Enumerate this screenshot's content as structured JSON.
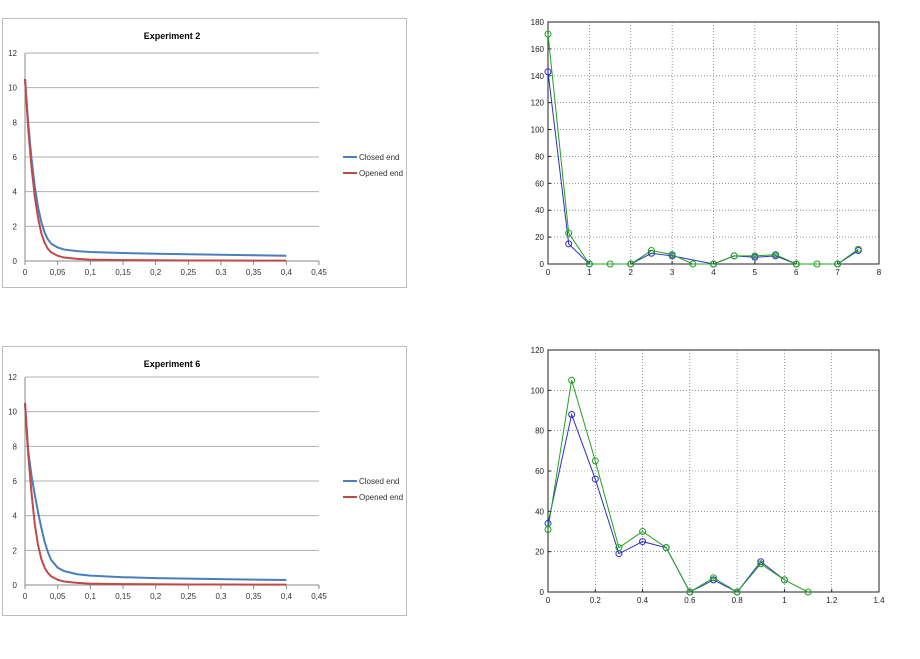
{
  "chart_data": [
    {
      "id": "exp2",
      "type": "line",
      "title": "Experiment 2",
      "xlim": [
        0,
        0.45
      ],
      "ylim": [
        0,
        12
      ],
      "x_ticks": [
        0,
        0.05,
        0.1,
        0.15,
        0.2,
        0.25,
        0.3,
        0.35,
        0.4,
        0.45
      ],
      "x_tick_labels": [
        "0",
        "0,05",
        "0,1",
        "0,15",
        "0,2",
        "0,25",
        "0,3",
        "0,35",
        "0,4",
        "0,45"
      ],
      "y_ticks": [
        0,
        2,
        4,
        6,
        8,
        10,
        12
      ],
      "y_tick_labels": [
        "0",
        "2",
        "4",
        "6",
        "8",
        "10",
        "12"
      ],
      "grid": "horizontal",
      "legend_position": "right",
      "series": [
        {
          "name": "Closed end",
          "color": "#4a7ebb",
          "x": [
            0,
            0.005,
            0.01,
            0.015,
            0.02,
            0.025,
            0.03,
            0.035,
            0.04,
            0.05,
            0.06,
            0.08,
            0.1,
            0.15,
            0.2,
            0.25,
            0.3,
            0.35,
            0.4
          ],
          "y": [
            10.5,
            7.9,
            5.9,
            4.3,
            3.1,
            2.25,
            1.65,
            1.25,
            1.0,
            0.78,
            0.66,
            0.57,
            0.52,
            0.46,
            0.42,
            0.39,
            0.36,
            0.33,
            0.3
          ]
        },
        {
          "name": "Opened end",
          "color": "#be4b48",
          "x": [
            0,
            0.005,
            0.01,
            0.015,
            0.02,
            0.025,
            0.03,
            0.035,
            0.04,
            0.05,
            0.06,
            0.08,
            0.1,
            0.15,
            0.2,
            0.25,
            0.3,
            0.35,
            0.4
          ],
          "y": [
            10.5,
            7.6,
            5.4,
            3.7,
            2.5,
            1.6,
            1.05,
            0.7,
            0.5,
            0.3,
            0.2,
            0.12,
            0.08,
            0.05,
            0.04,
            0.03,
            0.03,
            0.02,
            0.02
          ]
        }
      ]
    },
    {
      "id": "plot1",
      "type": "line",
      "title": "",
      "xlim": [
        0,
        8
      ],
      "ylim": [
        0,
        180
      ],
      "x_ticks": [
        0,
        1,
        2,
        3,
        4,
        5,
        6,
        7,
        8
      ],
      "x_tick_labels": [
        "0",
        "1",
        "2",
        "3",
        "4",
        "5",
        "6",
        "7",
        "8"
      ],
      "y_ticks": [
        0,
        20,
        40,
        60,
        80,
        100,
        120,
        140,
        160,
        180
      ],
      "y_tick_labels": [
        "0",
        "20",
        "40",
        "60",
        "80",
        "100",
        "120",
        "140",
        "160",
        "180"
      ],
      "grid": "dotted",
      "markers": "circle",
      "series": [
        {
          "color": "#2e2ec8",
          "x": [
            0,
            0.5,
            1,
            2,
            2.5,
            3,
            4,
            4.5,
            5,
            5.5,
            6,
            7,
            7.5
          ],
          "y": [
            143,
            15,
            0,
            0,
            8,
            6,
            0,
            6,
            5,
            6,
            0,
            0,
            10
          ]
        },
        {
          "color": "#22a022",
          "x": [
            0,
            0.5,
            1,
            1.5,
            2,
            2.5,
            3,
            3.5,
            4,
            4.5,
            5,
            5.5,
            6,
            6.5,
            7,
            7.5
          ],
          "y": [
            171,
            23,
            0,
            0,
            0,
            10,
            7,
            0,
            0,
            6,
            6,
            7,
            0,
            0,
            0,
            11
          ]
        }
      ]
    },
    {
      "id": "exp6",
      "type": "line",
      "title": "Experiment 6",
      "xlim": [
        0,
        0.45
      ],
      "ylim": [
        0,
        12
      ],
      "x_ticks": [
        0,
        0.05,
        0.1,
        0.15,
        0.2,
        0.25,
        0.3,
        0.35,
        0.4,
        0.45
      ],
      "x_tick_labels": [
        "0",
        "0,05",
        "0,1",
        "0,15",
        "0,2",
        "0,25",
        "0,3",
        "0,35",
        "0,4",
        "0,45"
      ],
      "y_ticks": [
        0,
        2,
        4,
        6,
        8,
        10,
        12
      ],
      "y_tick_labels": [
        "0",
        "2",
        "4",
        "6",
        "8",
        "10",
        "12"
      ],
      "grid": "horizontal",
      "legend_position": "right",
      "series": [
        {
          "name": "Closed end",
          "color": "#4a7ebb",
          "x": [
            0,
            0.005,
            0.01,
            0.015,
            0.02,
            0.025,
            0.03,
            0.035,
            0.04,
            0.05,
            0.06,
            0.08,
            0.1,
            0.15,
            0.2,
            0.25,
            0.3,
            0.35,
            0.4
          ],
          "y": [
            10.5,
            7.7,
            6.3,
            5.2,
            4.2,
            3.3,
            2.5,
            1.9,
            1.45,
            1.0,
            0.8,
            0.62,
            0.54,
            0.45,
            0.4,
            0.37,
            0.34,
            0.31,
            0.29
          ]
        },
        {
          "name": "Opened end",
          "color": "#be4b48",
          "x": [
            0,
            0.005,
            0.01,
            0.015,
            0.02,
            0.025,
            0.03,
            0.035,
            0.04,
            0.05,
            0.06,
            0.08,
            0.1,
            0.15,
            0.2,
            0.25,
            0.3,
            0.35,
            0.4
          ],
          "y": [
            10.5,
            7.5,
            5.3,
            3.5,
            2.3,
            1.5,
            1.0,
            0.7,
            0.5,
            0.3,
            0.2,
            0.12,
            0.08,
            0.05,
            0.04,
            0.03,
            0.03,
            0.02,
            0.02
          ]
        }
      ]
    },
    {
      "id": "plot2",
      "type": "line",
      "title": "",
      "xlim": [
        0,
        1.4
      ],
      "ylim": [
        0,
        120
      ],
      "x_ticks": [
        0,
        0.2,
        0.4,
        0.6,
        0.8,
        1,
        1.2,
        1.4
      ],
      "x_tick_labels": [
        "0",
        "0.2",
        "0.4",
        "0.6",
        "0.8",
        "1",
        "1.2",
        "1.4"
      ],
      "y_ticks": [
        0,
        20,
        40,
        60,
        80,
        100,
        120
      ],
      "y_tick_labels": [
        "0",
        "20",
        "40",
        "60",
        "80",
        "100",
        "120"
      ],
      "grid": "dotted",
      "markers": "circle",
      "series": [
        {
          "color": "#2e2ec8",
          "x": [
            0,
            0.1,
            0.2,
            0.3,
            0.4,
            0.5,
            0.6,
            0.7,
            0.8,
            0.9,
            1.0
          ],
          "y": [
            34,
            88,
            56,
            19,
            25,
            22,
            0,
            6,
            0,
            15,
            6
          ]
        },
        {
          "color": "#22a022",
          "x": [
            0,
            0.1,
            0.2,
            0.3,
            0.4,
            0.5,
            0.6,
            0.7,
            0.8,
            0.9,
            1.0,
            1.1
          ],
          "y": [
            31,
            105,
            65,
            22,
            30,
            22,
            0,
            7,
            0,
            14,
            6,
            0
          ]
        }
      ]
    }
  ]
}
